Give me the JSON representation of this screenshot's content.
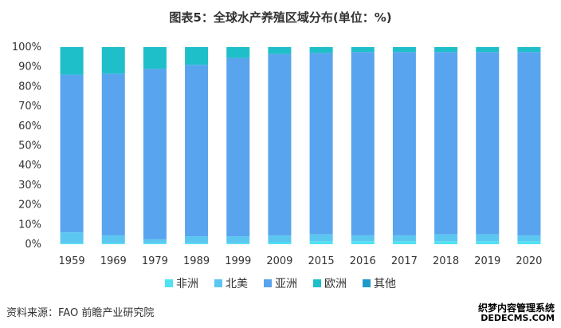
{
  "chart_data": {
    "type": "bar",
    "stacked": true,
    "title": "图表5：全球水产养殖区域分布(单位：%)",
    "categories": [
      "1959",
      "1969",
      "1979",
      "1989",
      "1999",
      "2009",
      "2015",
      "2016",
      "2017",
      "2018",
      "2019",
      "2020"
    ],
    "series": [
      {
        "name": "非洲",
        "color": "#4FE3F2",
        "values": [
          0.5,
          0.5,
          0.5,
          0.5,
          0.5,
          1.0,
          1.5,
          1.5,
          1.5,
          1.5,
          1.5,
          1.5
        ]
      },
      {
        "name": "北美",
        "color": "#5BC7F0",
        "values": [
          5.5,
          4.0,
          2.0,
          3.5,
          3.5,
          3.5,
          3.5,
          3.0,
          3.0,
          3.5,
          3.5,
          3.0
        ]
      },
      {
        "name": "亚洲",
        "color": "#58A4EE",
        "values": [
          80.0,
          82.0,
          86.5,
          87.0,
          90.5,
          92.0,
          92.0,
          93.0,
          93.0,
          92.5,
          92.5,
          93.0
        ]
      },
      {
        "name": "欧洲",
        "color": "#1FBFC9",
        "values": [
          14.0,
          13.5,
          11.0,
          9.0,
          5.5,
          3.5,
          3.0,
          2.5,
          2.5,
          2.5,
          2.5,
          2.5
        ]
      },
      {
        "name": "其他",
        "color": "#1E9BC9",
        "values": [
          0,
          0,
          0,
          0,
          0,
          0,
          0,
          0,
          0,
          0,
          0,
          0
        ]
      }
    ],
    "y_ticks": [
      "0%",
      "10%",
      "20%",
      "30%",
      "40%",
      "50%",
      "60%",
      "70%",
      "80%",
      "90%",
      "100%"
    ],
    "ylim": [
      0,
      100
    ],
    "grid": false,
    "legend_position": "bottom"
  },
  "source_text": "资料来源：FAO 前瞻产业研究院",
  "watermark_line1": "织梦内容管理系统",
  "watermark_line2": "DEDECMS.COM"
}
